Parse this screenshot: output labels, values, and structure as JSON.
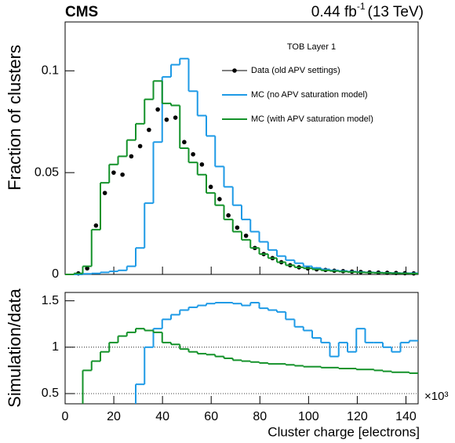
{
  "chart_data": [
    {
      "type": "histogram",
      "experiment": "CMS",
      "lumi": "0.44 fb",
      "lumi_exponent": "-1",
      "energy": "(13 TeV)",
      "annotation": "TOB Layer 1",
      "ylabel": "Fraction of clusters",
      "xlim": [
        0,
        145
      ],
      "ylim": [
        0,
        0.124
      ],
      "yticks": [
        0,
        0.05,
        0.1
      ],
      "bins": [
        0,
        3.625,
        7.25,
        10.875,
        14.5,
        18.125,
        21.75,
        25.375,
        29,
        32.625,
        36.25,
        39.875,
        43.5,
        47.125,
        50.75,
        54.375,
        58,
        61.625,
        65.25,
        68.875,
        72.5,
        76.125,
        79.75,
        83.375,
        87,
        90.625,
        94.25,
        97.875,
        101.5,
        105.125,
        108.75,
        112.375,
        116,
        119.625,
        123.25,
        126.875,
        130.5,
        134.125,
        137.75,
        141.375,
        145
      ],
      "series": [
        {
          "name": "Data (old APV settings)",
          "color": "#000000",
          "style": "points",
          "values": [
            null,
            0.0005,
            0.003,
            0.024,
            0.04,
            0.05,
            0.049,
            0.058,
            0.063,
            0.071,
            0.081,
            0.076,
            0.077,
            0.065,
            0.059,
            0.054,
            0.043,
            0.037,
            0.029,
            0.023,
            0.019,
            0.013,
            0.01,
            0.008,
            0.006,
            0.0045,
            0.0035,
            0.003,
            0.0025,
            0.0022,
            0.0018,
            0.0016,
            0.0014,
            0.0012,
            0.001,
            0.0009,
            0.0008,
            0.0007,
            0.0006,
            0.0005
          ]
        },
        {
          "name": "MC (no APV saturation model)",
          "color": "#1e9ae6",
          "style": "step",
          "values": [
            0,
            0,
            0.0003,
            0.0005,
            0.001,
            0.0015,
            0.002,
            0.004,
            0.013,
            0.035,
            0.065,
            0.097,
            0.103,
            0.106,
            0.09,
            0.078,
            0.068,
            0.053,
            0.043,
            0.034,
            0.027,
            0.021,
            0.016,
            0.012,
            0.009,
            0.007,
            0.0055,
            0.004,
            0.0032,
            0.0025,
            0.002,
            0.0017,
            0.0014,
            0.0012,
            0.001,
            0.0009,
            0.0008,
            0.0007,
            0.0006,
            0.0006
          ]
        },
        {
          "name": "MC (with APV saturation model)",
          "color": "#14922a",
          "style": "step",
          "values": [
            0,
            0.0005,
            0.004,
            0.022,
            0.045,
            0.054,
            0.058,
            0.066,
            0.074,
            0.086,
            0.095,
            0.084,
            0.083,
            0.062,
            0.055,
            0.049,
            0.04,
            0.034,
            0.027,
            0.021,
            0.017,
            0.013,
            0.01,
            0.008,
            0.006,
            0.0045,
            0.0035,
            0.003,
            0.0025,
            0.002,
            0.0017,
            0.0014,
            0.0012,
            0.001,
            0.0009,
            0.0008,
            0.0007,
            0.0006,
            0.0005,
            0.0004
          ]
        }
      ]
    },
    {
      "type": "histogram",
      "ylabel": "Simulation/data",
      "xlabel": "Cluster charge [electrons]",
      "x_exponent": "×10³",
      "xlim": [
        0,
        145
      ],
      "xticks": [
        0,
        20,
        40,
        60,
        80,
        100,
        120,
        140
      ],
      "ylim": [
        0.39,
        1.59
      ],
      "yticks": [
        0.5,
        1,
        1.5
      ],
      "ref_lines": [
        0.5,
        1
      ],
      "bins": [
        0,
        3.625,
        7.25,
        10.875,
        14.5,
        18.125,
        21.75,
        25.375,
        29,
        32.625,
        36.25,
        39.875,
        43.5,
        47.125,
        50.75,
        54.375,
        58,
        61.625,
        65.25,
        68.875,
        72.5,
        76.125,
        79.75,
        83.375,
        87,
        90.625,
        94.25,
        97.875,
        101.5,
        105.125,
        108.75,
        112.375,
        116,
        119.625,
        123.25,
        126.875,
        130.5,
        134.125,
        137.75,
        141.375,
        145
      ],
      "series": [
        {
          "color": "#1e9ae6",
          "style": "step",
          "values": [
            null,
            null,
            null,
            null,
            null,
            null,
            null,
            null,
            0.6,
            1.0,
            1.2,
            1.3,
            1.35,
            1.4,
            1.43,
            1.45,
            1.47,
            1.48,
            1.48,
            1.47,
            1.45,
            1.48,
            1.42,
            1.4,
            1.38,
            1.3,
            1.22,
            1.18,
            1.1,
            1.05,
            0.9,
            1.05,
            0.95,
            1.2,
            1.05,
            1.05,
            1.0,
            0.95,
            1.05,
            1.07
          ]
        },
        {
          "color": "#14922a",
          "style": "step",
          "values": [
            null,
            null,
            0.75,
            0.85,
            0.95,
            1.05,
            1.12,
            1.16,
            1.2,
            1.18,
            1.16,
            1.05,
            1.03,
            0.98,
            0.95,
            0.93,
            0.92,
            0.9,
            0.88,
            0.86,
            0.85,
            0.84,
            0.83,
            0.82,
            0.82,
            0.81,
            0.8,
            0.79,
            0.79,
            0.78,
            0.78,
            0.77,
            0.77,
            0.76,
            0.76,
            0.75,
            0.74,
            0.73,
            0.73,
            0.72
          ]
        }
      ]
    }
  ]
}
